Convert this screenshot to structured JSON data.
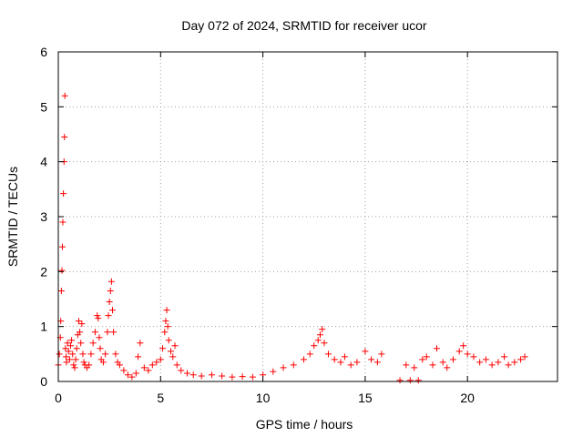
{
  "chart_data": {
    "type": "scatter",
    "title": "Day 072 of 2024, SRMTID for receiver ucor",
    "xlabel": "GPS time / hours",
    "ylabel": "SRMTID / TECUs",
    "xlim": [
      0,
      24.4
    ],
    "ylim": [
      0,
      6
    ],
    "xticks": [
      0,
      5,
      10,
      15,
      20
    ],
    "yticks": [
      0,
      1,
      2,
      3,
      4,
      5,
      6
    ],
    "grid": true,
    "marker": "+",
    "color": "#ff0000",
    "series": [
      {
        "name": "SRMTID",
        "x": [
          0.0,
          0.05,
          0.1,
          0.12,
          0.15,
          0.18,
          0.2,
          0.22,
          0.25,
          0.28,
          0.3,
          0.32,
          0.35,
          0.38,
          0.4,
          0.45,
          0.5,
          0.55,
          0.6,
          0.65,
          0.7,
          0.75,
          0.8,
          0.85,
          0.9,
          0.95,
          1.0,
          1.05,
          1.1,
          1.15,
          1.2,
          1.25,
          1.3,
          1.4,
          1.5,
          1.6,
          1.7,
          1.8,
          1.9,
          1.95,
          2.0,
          2.05,
          2.1,
          2.2,
          2.3,
          2.4,
          2.45,
          2.5,
          2.55,
          2.6,
          2.65,
          2.7,
          2.8,
          2.9,
          3.0,
          3.2,
          3.4,
          3.6,
          3.8,
          3.9,
          4.0,
          4.2,
          4.4,
          4.6,
          4.8,
          5.0,
          5.1,
          5.2,
          5.25,
          5.3,
          5.35,
          5.4,
          5.5,
          5.6,
          5.7,
          5.8,
          6.0,
          6.3,
          6.6,
          7.0,
          7.5,
          8.0,
          8.5,
          9.0,
          9.5,
          10.0,
          10.5,
          11.0,
          11.5,
          12.0,
          12.3,
          12.5,
          12.7,
          12.8,
          12.9,
          13.0,
          13.2,
          13.5,
          13.8,
          14.0,
          14.3,
          14.6,
          15.0,
          15.3,
          15.6,
          15.8,
          16.7,
          17.0,
          17.2,
          17.4,
          17.6,
          17.8,
          18.0,
          18.3,
          18.5,
          18.8,
          19.0,
          19.3,
          19.6,
          19.8,
          20.0,
          20.3,
          20.6,
          20.9,
          21.2,
          21.5,
          21.8,
          22.0,
          22.3,
          22.6,
          22.8
        ],
        "y": [
          0.3,
          0.5,
          0.8,
          1.1,
          1.65,
          2.02,
          2.45,
          2.9,
          3.42,
          4.0,
          4.45,
          5.2,
          0.6,
          0.45,
          0.35,
          0.7,
          0.55,
          0.4,
          0.65,
          0.75,
          0.5,
          0.3,
          0.25,
          0.4,
          0.6,
          0.85,
          1.1,
          0.9,
          0.7,
          1.05,
          0.5,
          0.35,
          0.3,
          0.25,
          0.3,
          0.5,
          0.7,
          0.9,
          1.2,
          1.15,
          0.8,
          0.6,
          0.4,
          0.35,
          0.5,
          0.9,
          1.2,
          1.45,
          1.65,
          1.82,
          1.3,
          0.9,
          0.5,
          0.35,
          0.3,
          0.2,
          0.12,
          0.08,
          0.15,
          0.45,
          0.7,
          0.25,
          0.2,
          0.3,
          0.35,
          0.4,
          0.6,
          0.9,
          1.1,
          1.3,
          1.0,
          0.75,
          0.55,
          0.45,
          0.65,
          0.3,
          0.2,
          0.15,
          0.12,
          0.1,
          0.12,
          0.1,
          0.08,
          0.09,
          0.08,
          0.12,
          0.18,
          0.25,
          0.3,
          0.4,
          0.5,
          0.65,
          0.75,
          0.85,
          0.95,
          0.7,
          0.5,
          0.4,
          0.35,
          0.45,
          0.3,
          0.35,
          0.55,
          0.4,
          0.35,
          0.5,
          0.02,
          0.3,
          0.02,
          0.25,
          0.02,
          0.4,
          0.45,
          0.3,
          0.6,
          0.35,
          0.25,
          0.4,
          0.55,
          0.65,
          0.5,
          0.45,
          0.35,
          0.4,
          0.3,
          0.35,
          0.45,
          0.3,
          0.35,
          0.4,
          0.45
        ]
      }
    ]
  }
}
